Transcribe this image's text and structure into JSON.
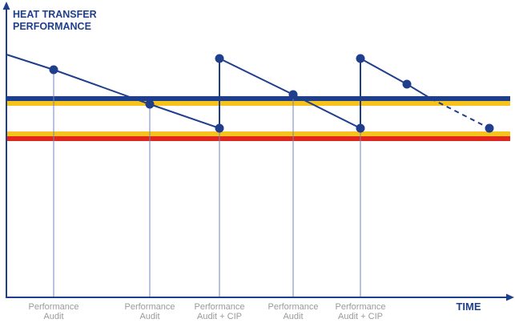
{
  "diagram": {
    "y_axis_title_line1": "HEAT TRANSFER",
    "y_axis_title_line2": "PERFORMANCE",
    "x_axis_title": "TIME",
    "events": [
      {
        "line1": "Performance",
        "line2": "Audit"
      },
      {
        "line1": "Performance",
        "line2": "Audit"
      },
      {
        "line1": "Performance",
        "line2": "Audit + CIP"
      },
      {
        "line1": "Performance",
        "line2": "Audit"
      },
      {
        "line1": "Performance",
        "line2": "Audit + CIP"
      }
    ],
    "colors": {
      "navy": "#1f3f8c",
      "yellow": "#f5c31c",
      "red": "#e0261d",
      "event_line": "#6f86b8",
      "label_gray": "#9a9a9a"
    }
  }
}
